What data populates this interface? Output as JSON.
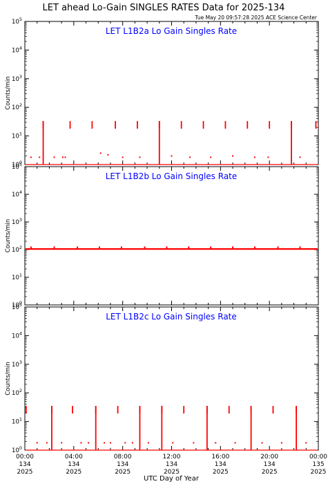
{
  "title": "LET ahead Lo-Gain SINGLES RATES Data for 2025-134",
  "timestamp": "Tue May 20 09:57:28 2025 ACE Science Center",
  "xlabel": "UTC Day of Year",
  "colors": {
    "data": "#ff0000",
    "panel_title": "#0000ff",
    "axes": "#000000"
  },
  "chart_data": [
    {
      "type": "line",
      "title": "LET L1B2a Lo Gain Singles Rate",
      "ylabel": "Counts/min",
      "yscale": "log",
      "ylim": [
        1,
        100000
      ],
      "ytick_labels": [
        "10^0",
        "10^1",
        "10^2",
        "10^3",
        "10^4",
        "10^5"
      ],
      "xlim": [
        "00:00 134 2025",
        "00:00 135 2025"
      ],
      "baseline": 1,
      "spike_peak": 33,
      "spike_times_hours": [
        1.5,
        3.7,
        5.5,
        7.4,
        9.2,
        11.0,
        12.8,
        14.6,
        16.4,
        18.2,
        20.0,
        21.8,
        23.8
      ],
      "tall_lines_hours": [
        1.5,
        11.0,
        21.8
      ],
      "scatter_hours": [
        0.5,
        1.2,
        2.4,
        3.1,
        3.3,
        6.2,
        6.8,
        8.0,
        9.4,
        12.0,
        13.5,
        15.2,
        17.0,
        18.8,
        19.9,
        22.5
      ],
      "scatter_values": [
        1.8,
        1.8,
        1.8,
        1.8,
        1.8,
        2.5,
        2.2,
        1.8,
        1.8,
        2.0,
        1.8,
        1.8,
        2.0,
        1.8,
        1.8,
        1.8
      ]
    },
    {
      "type": "line",
      "title": "LET L1B2b Lo Gain Singles Rate",
      "ylabel": "Counts/min",
      "yscale": "log",
      "ylim": [
        1,
        100000
      ],
      "ytick_labels": [
        "10^0",
        "10^1",
        "10^2",
        "10^3",
        "10^4",
        "10^5"
      ],
      "xlim": [
        "00:00 134 2025",
        "00:00 135 2025"
      ],
      "baseline": 105,
      "spike_peak": 130,
      "spike_times_hours": [
        0.5,
        2.4,
        4.3,
        6.1,
        7.9,
        9.8,
        11.6,
        13.4,
        15.2,
        17.0,
        18.8,
        20.7,
        22.5
      ],
      "tall_lines_hours": [],
      "scatter_hours": [],
      "scatter_values": []
    },
    {
      "type": "line",
      "title": "LET L1B2c Lo Gain Singles Rate",
      "ylabel": "Counts/min",
      "yscale": "log",
      "ylim": [
        1,
        100000
      ],
      "ytick_labels": [
        "10^0",
        "10^1",
        "10^2",
        "10^3",
        "10^4",
        "10^5"
      ],
      "xlim": [
        "00:00 134 2025",
        "00:00 135 2025"
      ],
      "baseline": 1,
      "spike_peak": 35,
      "spike_times_hours": [
        0.1,
        2.2,
        3.9,
        5.8,
        7.6,
        9.4,
        11.2,
        13.0,
        14.9,
        16.7,
        18.5,
        20.3,
        22.2
      ],
      "tall_lines_hours": [
        2.2,
        5.8,
        9.4,
        11.2,
        14.9,
        18.5,
        22.2
      ],
      "scatter_hours": [
        1.0,
        1.8,
        3.0,
        4.6,
        5.2,
        6.5,
        7.0,
        8.2,
        8.8,
        10.1,
        12.1,
        13.8,
        15.6,
        17.2,
        19.4,
        21.0,
        23.0
      ],
      "scatter_values": [
        1.8,
        1.8,
        1.8,
        1.8,
        1.8,
        1.8,
        1.8,
        1.8,
        1.8,
        1.8,
        1.8,
        1.8,
        1.8,
        1.8,
        1.8,
        1.8,
        1.8
      ]
    }
  ],
  "x_ticks": [
    {
      "time": "00:00",
      "day": "134",
      "year": "2025"
    },
    {
      "time": "04:00",
      "day": "134",
      "year": "2025"
    },
    {
      "time": "08:00",
      "day": "134",
      "year": "2025"
    },
    {
      "time": "12:00",
      "day": "134",
      "year": "2025"
    },
    {
      "time": "16:00",
      "day": "134",
      "year": "2025"
    },
    {
      "time": "20:00",
      "day": "134",
      "year": "2025"
    },
    {
      "time": "00:00",
      "day": "135",
      "year": "2025"
    }
  ]
}
